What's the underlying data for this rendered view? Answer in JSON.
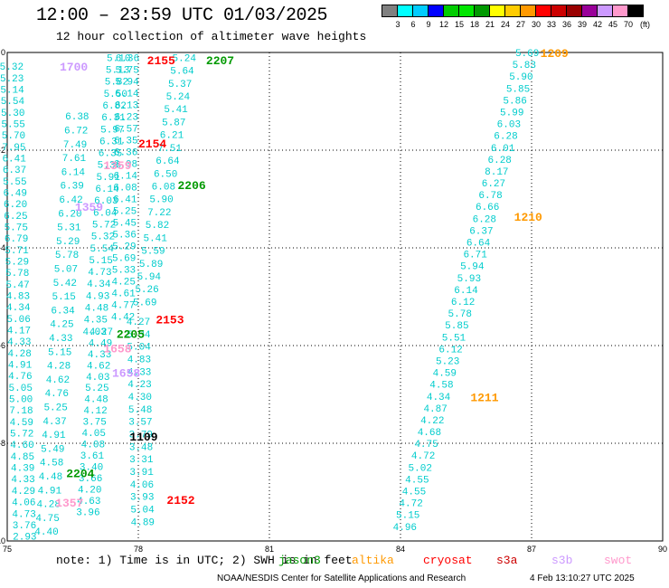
{
  "title": "12:00 – 23:59 UTC 01/03/2025",
  "subtitle": "12 hour collection of altimeter wave heights",
  "colorbar": {
    "colors": [
      "#808080",
      "#00ffff",
      "#00ccff",
      "#0000ff",
      "#00cc00",
      "#00e600",
      "#009900",
      "#ffff00",
      "#ffcc00",
      "#ff9900",
      "#ff0000",
      "#cc0000",
      "#990000",
      "#990099",
      "#cc99ff",
      "#ff99cc",
      "#000000"
    ],
    "labels": [
      "3",
      "6",
      "9",
      "12",
      "15",
      "18",
      "21",
      "24",
      "27",
      "30",
      "33",
      "36",
      "39",
      "42",
      "45",
      "70"
    ],
    "unit": "(ft)"
  },
  "note": "note: 1) Time is in UTC; 2) SWH is in feet",
  "legend": [
    {
      "name": "jason3",
      "color": "#009900"
    },
    {
      "name": "altika",
      "color": "#ff9900"
    },
    {
      "name": "cryosat",
      "color": "#ff0000"
    },
    {
      "name": "s3a",
      "color": "#cc0000"
    },
    {
      "name": "s3b",
      "color": "#cc99ff"
    },
    {
      "name": "swot",
      "color": "#ff99cc"
    }
  ],
  "credit": "NOAA/NESDIS Center for Satellite Applications and Research",
  "timestamp": "4 Feb 13:10:27 UTC 2025",
  "chart_data": {
    "type": "scatter",
    "xlim": [
      75,
      90
    ],
    "ylim": [
      -10,
      0
    ],
    "x_ticks": [
      "75",
      "78",
      "81",
      "84",
      "87",
      "90"
    ],
    "y_ticks": [
      "0",
      "-2",
      "-4",
      "-6",
      "-8",
      "-10"
    ],
    "grid": true,
    "time_labels": [
      {
        "text": "1700",
        "x": 76.2,
        "y": -0.28,
        "color": "#cc99ff"
      },
      {
        "text": "2155",
        "x": 78.2,
        "y": -0.15,
        "color": "#ff0000"
      },
      {
        "text": "2207",
        "x": 79.55,
        "y": -0.15,
        "color": "#009900"
      },
      {
        "text": "2154",
        "x": 78.0,
        "y": -1.85,
        "color": "#ff0000"
      },
      {
        "text": "1359",
        "x": 77.2,
        "y": -2.3,
        "color": "#ff99cc"
      },
      {
        "text": "2206",
        "x": 78.9,
        "y": -2.7,
        "color": "#009900"
      },
      {
        "text": "1359",
        "x": 76.55,
        "y": -3.15,
        "color": "#cc99ff"
      },
      {
        "text": "2153",
        "x": 78.4,
        "y": -5.45,
        "color": "#ff0000"
      },
      {
        "text": "2205",
        "x": 77.5,
        "y": -5.75,
        "color": "#009900"
      },
      {
        "text": "1658",
        "x": 77.2,
        "y": -6.05,
        "color": "#ff99cc"
      },
      {
        "text": "1658",
        "x": 77.4,
        "y": -6.55,
        "color": "#cc99ff"
      },
      {
        "text": "1109",
        "x": 77.8,
        "y": -7.85,
        "color": "#000000"
      },
      {
        "text": "2204",
        "x": 76.35,
        "y": -8.6,
        "color": "#009900"
      },
      {
        "text": "1357",
        "x": 76.1,
        "y": -9.2,
        "color": "#ff99cc"
      },
      {
        "text": "2152",
        "x": 78.65,
        "y": -9.15,
        "color": "#ff0000"
      },
      {
        "text": "1209",
        "x": 87.2,
        "y": 0.0,
        "color": "#ff9900"
      },
      {
        "text": "1210",
        "x": 86.6,
        "y": -3.35,
        "color": "#ff9900"
      },
      {
        "text": "1211",
        "x": 85.6,
        "y": -7.05,
        "color": "#ff9900"
      }
    ],
    "series": [
      {
        "x0": 75.1,
        "x1": 75.4,
        "y0": -0.28,
        "y1": -9.9,
        "color": "#00cccc",
        "values": [
          "5.32",
          "5.23",
          "5.14",
          "5.54",
          "5.30",
          "5.55",
          "5.70",
          "7.95",
          "6.41",
          "6.37",
          "5.55",
          "6.49",
          "6.20",
          "6.25",
          "5.75",
          "6.79",
          "5.71",
          "5.29",
          "5.78",
          "5.47",
          "4.83",
          "4.34",
          "5.06",
          "4.17",
          "4.33",
          "4.28",
          "4.91",
          "4.76",
          "5.05",
          "5.00",
          "7.18",
          "4.59",
          "5.72",
          "4.60",
          "4.85",
          "4.39",
          "4.33",
          "4.29",
          "4.06",
          "4.73",
          "3.76",
          "2.93"
        ]
      },
      {
        "x0": 76.6,
        "x1": 75.9,
        "y0": -1.3,
        "y1": -9.8,
        "color": "#00cccc",
        "values": [
          "6.38",
          "6.72",
          "7.49",
          "7.61",
          "6.14",
          "6.39",
          "6.42",
          "6.20",
          "5.31",
          "5.29",
          "5.78",
          "5.07",
          "5.42",
          "5.15",
          "6.34",
          "4.25",
          "4.33",
          "5.15",
          "4.28",
          "4.62",
          "4.76",
          "5.25",
          "4.37",
          "4.91",
          "5.49",
          "4.58",
          "4.48",
          "4.91",
          "4.28",
          "4.75",
          "4.40"
        ]
      },
      {
        "x0": 77.55,
        "x1": 77.0,
        "y0": -0.1,
        "y1": -5.7,
        "color": "#00cccc",
        "values": [
          "5.10",
          "5.13",
          "5.82",
          "5.50",
          "6.82",
          "6.31",
          "5.97",
          "6.31",
          "6.35",
          "5.36",
          "5.91",
          "6.14",
          "6.03",
          "6.04",
          "5.72",
          "5.32",
          "5.54",
          "5.15",
          "4.73",
          "4.34",
          "4.93",
          "4.48",
          "4.35",
          "4.03"
        ]
      },
      {
        "x0": 77.15,
        "x1": 76.85,
        "y0": -5.7,
        "y1": -9.4,
        "color": "#00cccc",
        "values": [
          "4.27",
          "4.49",
          "4.33",
          "4.62",
          "4.03",
          "5.25",
          "4.48",
          "4.12",
          "3.75",
          "4.05",
          "4.08",
          "3.61",
          "3.40",
          "3.66",
          "4.20",
          "4.63",
          "3.96"
        ]
      },
      {
        "x0": 77.75,
        "x1": 77.65,
        "y0": -0.1,
        "y1": -5.4,
        "color": "#00cccc",
        "values": [
          "6.36",
          "5.75",
          "5.94",
          "6.14",
          "6.13",
          "6.23",
          "6.57",
          "6.35",
          "6.36",
          "6.08",
          "6.14",
          "6.08",
          "6.41",
          "5.25",
          "5.45",
          "5.36",
          "5.29",
          "5.69",
          "5.33",
          "4.25",
          "4.61",
          "4.77",
          "4.42"
        ]
      },
      {
        "x0": 78.0,
        "x1": 78.1,
        "y0": -5.5,
        "y1": -9.6,
        "color": "#00cccc",
        "values": [
          "4.27",
          "5.34",
          "5.04",
          "4.83",
          "4.33",
          "4.23",
          "4.30",
          "5.48",
          "3.57",
          "3.79",
          "3.48",
          "3.31",
          "3.91",
          "4.06",
          "3.93",
          "5.04",
          "4.89"
        ]
      },
      {
        "x0": 79.05,
        "x1": 78.15,
        "y0": -0.1,
        "y1": -5.1,
        "color": "#00cccc",
        "values": [
          "5.24",
          "5.64",
          "5.37",
          "5.24",
          "5.41",
          "5.87",
          "6.21",
          "7.51",
          "6.64",
          "6.50",
          "6.08",
          "5.90",
          "7.22",
          "5.82",
          "5.41",
          "5.59",
          "5.89",
          "5.94",
          "5.26",
          "5.69"
        ]
      },
      {
        "x0": 86.9,
        "x1": 84.1,
        "y0": 0.0,
        "y1": -9.7,
        "color": "#00cccc",
        "values": [
          "5.69",
          "5.83",
          "5.90",
          "5.85",
          "5.86",
          "5.99",
          "6.03",
          "6.28",
          "6.01",
          "6.28",
          "8.17",
          "6.27",
          "6.78",
          "6.66",
          "6.28",
          "6.37",
          "6.64",
          "6.71",
          "5.94",
          "5.93",
          "6.14",
          "6.12",
          "5.78",
          "5.85",
          "5.51",
          "6.12",
          "5.23",
          "4.59",
          "4.58",
          "4.34",
          "4.87",
          "4.22",
          "4.68",
          "4.75",
          "4.72",
          "5.02",
          "4.55",
          "4.55",
          "4.72",
          "5.15",
          "4.96"
        ]
      }
    ]
  }
}
